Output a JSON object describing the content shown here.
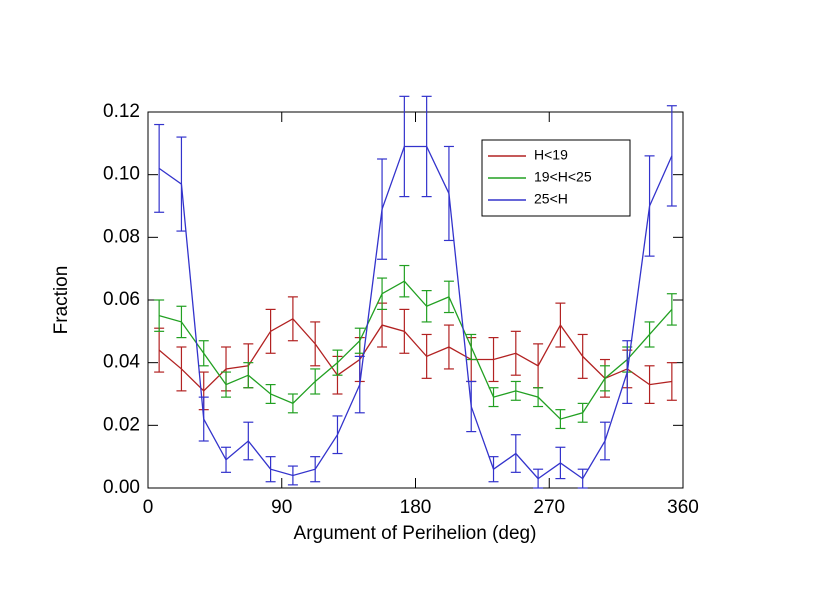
{
  "chart_data": {
    "type": "line",
    "xlabel": "Argument of Perihelion (deg)",
    "ylabel": "Fraction",
    "x": [
      7.5,
      22.5,
      37.5,
      52.5,
      67.5,
      82.5,
      97.5,
      112.5,
      127.5,
      142.5,
      157.5,
      172.5,
      187.5,
      202.5,
      217.5,
      232.5,
      247.5,
      262.5,
      277.5,
      292.5,
      307.5,
      322.5,
      337.5,
      352.5
    ],
    "series": [
      {
        "name": "H<19",
        "color": "#b22222",
        "values": [
          0.044,
          0.038,
          0.031,
          0.038,
          0.039,
          0.05,
          0.054,
          0.046,
          0.036,
          0.041,
          0.052,
          0.05,
          0.042,
          0.045,
          0.041,
          0.041,
          0.043,
          0.039,
          0.052,
          0.042,
          0.035,
          0.038,
          0.033,
          0.034
        ],
        "errors": [
          0.007,
          0.007,
          0.006,
          0.007,
          0.007,
          0.007,
          0.007,
          0.007,
          0.006,
          0.007,
          0.007,
          0.007,
          0.007,
          0.007,
          0.007,
          0.007,
          0.007,
          0.007,
          0.007,
          0.007,
          0.006,
          0.006,
          0.006,
          0.006
        ]
      },
      {
        "name": "19<H<25",
        "color": "#22a022",
        "values": [
          0.055,
          0.053,
          0.043,
          0.033,
          0.036,
          0.03,
          0.027,
          0.034,
          0.04,
          0.047,
          0.062,
          0.066,
          0.058,
          0.061,
          0.045,
          0.029,
          0.031,
          0.029,
          0.022,
          0.024,
          0.035,
          0.041,
          0.049,
          0.057
        ],
        "errors": [
          0.005,
          0.005,
          0.004,
          0.004,
          0.004,
          0.003,
          0.003,
          0.004,
          0.004,
          0.004,
          0.005,
          0.005,
          0.005,
          0.005,
          0.004,
          0.003,
          0.003,
          0.003,
          0.003,
          0.003,
          0.004,
          0.004,
          0.004,
          0.005
        ]
      },
      {
        "name": "25<H",
        "color": "#3333cc",
        "values": [
          0.102,
          0.097,
          0.022,
          0.009,
          0.015,
          0.006,
          0.004,
          0.006,
          0.017,
          0.033,
          0.089,
          0.109,
          0.109,
          0.094,
          0.026,
          0.006,
          0.011,
          0.003,
          0.008,
          0.003,
          0.015,
          0.037,
          0.09,
          0.106
        ],
        "errors": [
          0.014,
          0.015,
          0.007,
          0.004,
          0.006,
          0.004,
          0.003,
          0.004,
          0.006,
          0.009,
          0.016,
          0.016,
          0.016,
          0.015,
          0.008,
          0.004,
          0.006,
          0.003,
          0.005,
          0.003,
          0.006,
          0.01,
          0.016,
          0.016
        ]
      }
    ],
    "xlim": [
      0,
      360
    ],
    "xticks": [
      0,
      90,
      180,
      270,
      360
    ],
    "ylim": [
      0,
      0.12
    ],
    "yticks": [
      {
        "value": 0,
        "label": "0.00"
      },
      {
        "value": 0.02,
        "label": "0.02"
      },
      {
        "value": 0.04,
        "label": "0.04"
      },
      {
        "value": 0.06,
        "label": "0.06"
      },
      {
        "value": 0.08,
        "label": "0.08"
      },
      {
        "value": 0.1,
        "label": "0.10"
      },
      {
        "value": 0.12,
        "label": "0.12"
      }
    ],
    "legend": "upper right"
  }
}
